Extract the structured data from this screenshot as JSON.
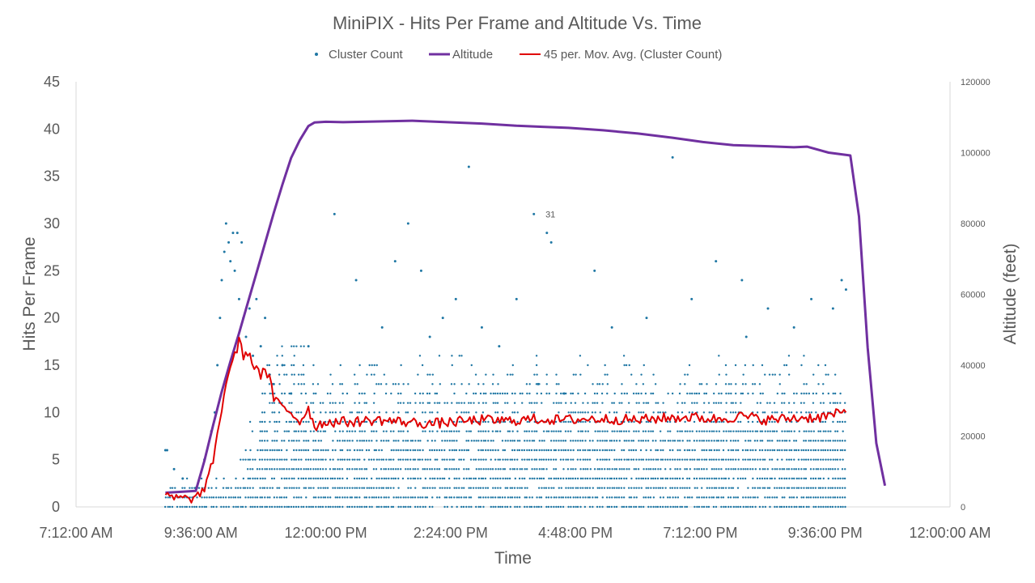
{
  "chart_data": {
    "type": "scatter",
    "title": "MiniPIX - Hits Per Frame and Altitude Vs. Time",
    "xlabel": "Time",
    "ylabel": "Hits Per Frame",
    "y2label": "Altitude (feet)",
    "xlim": [
      "7:12:00 AM",
      "12:00:00 AM"
    ],
    "x_ticks": [
      "7:12:00 AM",
      "9:36:00 AM",
      "12:00:00 PM",
      "2:24:00 PM",
      "4:48:00 PM",
      "7:12:00 PM",
      "9:36:00 PM",
      "12:00:00 AM"
    ],
    "ylim": [
      0,
      45
    ],
    "y_ticks": [
      "0",
      "5",
      "10",
      "15",
      "20",
      "25",
      "30",
      "35",
      "40",
      "45"
    ],
    "y2lim": [
      0,
      120000
    ],
    "y2_ticks": [
      "0",
      "20000",
      "40000",
      "60000",
      "80000",
      "100000",
      "120000"
    ],
    "grid": false,
    "legend_position": "top",
    "annotation": "31",
    "colors": {
      "cluster": "#1f77a4",
      "altitude": "#7030a0",
      "moving_avg": "#e00000"
    },
    "series": [
      {
        "name": "Cluster Count",
        "kind": "scatter",
        "axis": "left",
        "x": [
          "8:55 AM",
          "8:57 AM",
          "9:05 AM",
          "9:15 AM",
          "9:30 AM",
          "9:40 AM",
          "9:48 AM",
          "9:52 AM",
          "9:55 AM",
          "9:58 AM",
          "10:00 AM",
          "10:03 AM",
          "10:05 AM",
          "10:08 AM",
          "10:10 AM",
          "10:13 AM",
          "10:15 AM",
          "10:18 AM",
          "10:20 AM",
          "10:23 AM",
          "10:25 AM",
          "10:28 AM",
          "10:32 AM",
          "10:36 AM",
          "10:40 AM",
          "10:45 AM",
          "10:50 AM",
          "10:55 AM",
          "11:00 AM",
          "11:10 AM",
          "11:20 AM",
          "11:40 AM",
          "12:10 PM",
          "12:35 PM",
          "1:05 PM",
          "1:20 PM",
          "1:35 PM",
          "1:50 PM",
          "2:00 PM",
          "2:15 PM",
          "2:30 PM",
          "2:45 PM",
          "3:00 PM",
          "3:20 PM",
          "3:40 PM",
          "4:00 PM",
          "4:05 PM",
          "4:15 PM",
          "4:20 PM",
          "4:35 PM",
          "5:10 PM",
          "5:30 PM",
          "6:10 PM",
          "6:40 PM",
          "7:02 PM",
          "7:30 PM",
          "8:00 PM",
          "8:05 PM",
          "8:30 PM",
          "9:00 PM",
          "9:20 PM",
          "9:45 PM",
          "9:55 PM",
          "10:00 PM"
        ],
        "y": [
          6,
          6,
          4,
          3,
          2,
          5,
          8,
          10,
          15,
          20,
          24,
          27,
          30,
          28,
          26,
          29,
          25,
          29,
          22,
          28,
          20,
          18,
          21,
          16,
          22,
          17,
          20,
          14,
          13,
          15,
          12,
          17,
          31,
          24,
          19,
          26,
          30,
          25,
          18,
          20,
          22,
          36,
          19,
          17,
          22,
          31,
          13,
          29,
          28,
          12,
          25,
          19,
          20,
          37,
          22,
          26,
          24,
          18,
          21,
          19,
          22,
          21,
          24,
          23
        ]
      },
      {
        "name": "Altitude",
        "kind": "line",
        "axis": "right",
        "x": [
          "8:55 AM",
          "9:15 AM",
          "9:30 AM",
          "9:40 AM",
          "9:50 AM",
          "10:00 AM",
          "10:10 AM",
          "10:20 AM",
          "10:30 AM",
          "10:40 AM",
          "10:50 AM",
          "11:00 AM",
          "11:10 AM",
          "11:20 AM",
          "11:30 AM",
          "11:40 AM",
          "11:47 AM",
          "12:00 PM",
          "12:20 PM",
          "1:00 PM",
          "1:40 PM",
          "2:20 PM",
          "3:00 PM",
          "3:40 PM",
          "4:10 PM",
          "4:40 PM",
          "5:20 PM",
          "6:00 PM",
          "6:40 PM",
          "7:15 PM",
          "7:50 PM",
          "8:30 PM",
          "9:00 PM",
          "9:15 PM",
          "9:40 PM",
          "10:05 PM",
          "10:15 PM",
          "10:25 PM",
          "10:35 PM",
          "10:45 PM"
        ],
        "y": [
          4000,
          4300,
          4500,
          13000,
          23000,
          32500,
          41000,
          49000,
          57500,
          66000,
          74500,
          83000,
          91000,
          98500,
          103500,
          107500,
          108500,
          108700,
          108600,
          108800,
          109000,
          108600,
          108200,
          107600,
          107300,
          107000,
          106300,
          105400,
          104200,
          103000,
          102100,
          101800,
          101500,
          101700,
          100000,
          99200,
          82000,
          45000,
          18000,
          6000
        ]
      },
      {
        "name": "45 per. Mov. Avg. (Cluster Count)",
        "kind": "line",
        "axis": "left",
        "x": [
          "8:55 AM",
          "9:10 AM",
          "9:20 AM",
          "9:35 AM",
          "9:45 AM",
          "9:50 AM",
          "9:55 AM",
          "10:00 AM",
          "10:05 AM",
          "10:10 AM",
          "10:15 AM",
          "10:20 AM",
          "10:25 AM",
          "10:30 AM",
          "10:35 AM",
          "10:40 AM",
          "10:45 AM",
          "10:50 AM",
          "10:55 AM",
          "11:00 AM",
          "11:10 AM",
          "11:20 AM",
          "11:30 AM",
          "11:40 AM",
          "11:47 AM",
          "12:00 PM",
          "12:30 PM",
          "1:00 PM",
          "1:30 PM",
          "2:00 PM",
          "2:30 PM",
          "3:00 PM",
          "3:30 PM",
          "4:00 PM",
          "4:30 PM",
          "5:00 PM",
          "5:30 PM",
          "6:00 PM",
          "6:30 PM",
          "7:00 PM",
          "7:30 PM",
          "8:00 PM",
          "8:30 PM",
          "9:00 PM",
          "9:30 PM",
          "10:00 PM"
        ],
        "y": [
          1.1,
          0.9,
          0.8,
          1.2,
          3,
          5,
          7.5,
          10.5,
          13,
          15,
          16,
          17.5,
          16,
          16.5,
          15,
          15,
          14,
          14.5,
          13.5,
          11.5,
          10.5,
          10,
          9,
          10.5,
          8.5,
          9,
          9,
          9.2,
          9,
          8.8,
          9,
          9.2,
          9.1,
          9.3,
          9.2,
          9.3,
          9.3,
          9.2,
          9.4,
          9.5,
          9.3,
          9.6,
          9.2,
          9.4,
          9.5,
          10
        ]
      }
    ]
  }
}
